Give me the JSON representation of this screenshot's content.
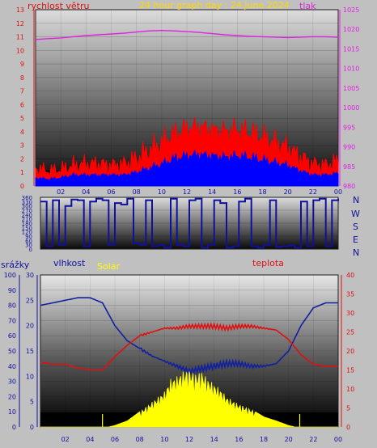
{
  "header": {
    "wind_label": "rychlost větru",
    "title": "24 hour graph day : 24 June 2024",
    "pressure_label": "tlak"
  },
  "panel2": {
    "compass": [
      "N",
      "W",
      "S",
      "E",
      "N"
    ]
  },
  "panel3": {
    "rain_label": "srážky",
    "humidity_label": "vlhkost",
    "solar_label": "Solar",
    "temp_label": "teplota"
  },
  "colors": {
    "background": "#c0c0c0",
    "wind_avg": "#0000ff",
    "wind_gust": "#ff0000",
    "pressure": "#e020e0",
    "direction": "#1010a0",
    "humidity": "#1020a0",
    "temperature": "#e01010",
    "solar": "#ffff00",
    "title": "#ffd700"
  },
  "chart_data": [
    {
      "type": "line",
      "x_ticks": [
        "02",
        "04",
        "06",
        "08",
        "10",
        "12",
        "14",
        "16",
        "18",
        "20",
        "22",
        "00"
      ],
      "y_left_ticks": [
        "0",
        "1",
        "2",
        "3",
        "4",
        "5",
        "6",
        "7",
        "8",
        "9",
        "10",
        "11",
        "12",
        "13"
      ],
      "y_right_ticks": [
        "980",
        "985",
        "990",
        "995",
        "1000",
        "1005",
        "1010",
        "1015",
        "1020",
        "1025"
      ],
      "ylim_left": [
        0,
        13
      ],
      "ylim_right": [
        980,
        1025
      ],
      "series": [
        {
          "x": [
            0,
            1,
            2,
            3,
            4,
            5,
            6,
            7,
            8,
            9,
            10,
            11,
            12,
            13,
            14,
            15,
            16,
            17,
            18,
            19,
            20,
            21,
            22,
            23,
            24
          ],
          "values": [
            0.6,
            0.5,
            0.6,
            0.8,
            0.8,
            0.8,
            0.8,
            0.8,
            1.0,
            1.3,
            1.6,
            2.0,
            2.2,
            2.3,
            2.2,
            2.1,
            2.2,
            2.1,
            1.9,
            1.7,
            1.5,
            1.1,
            0.8,
            0.8,
            0.9
          ]
        },
        {
          "x": [
            0,
            1,
            2,
            3,
            4,
            5,
            6,
            7,
            8,
            9,
            10,
            11,
            12,
            13,
            14,
            15,
            16,
            17,
            18,
            19,
            20,
            21,
            22,
            23,
            24
          ],
          "values": [
            1.3,
            1.1,
            1.2,
            1.5,
            1.6,
            1.6,
            1.5,
            1.6,
            2.0,
            2.6,
            3.2,
            3.8,
            4.2,
            4.3,
            4.1,
            4.0,
            4.1,
            3.9,
            3.6,
            3.2,
            2.8,
            2.1,
            1.6,
            1.5,
            1.8
          ]
        },
        {
          "x": [
            0,
            1,
            2,
            3,
            4,
            5,
            6,
            7,
            8,
            9,
            10,
            11,
            12,
            13,
            14,
            15,
            16,
            17,
            18,
            19,
            20,
            21,
            22,
            23,
            24
          ],
          "values": [
            1017.4,
            1017.6,
            1017.8,
            1018.1,
            1018.4,
            1018.6,
            1018.8,
            1019.0,
            1019.3,
            1019.6,
            1019.7,
            1019.6,
            1019.4,
            1019.2,
            1018.9,
            1018.6,
            1018.4,
            1018.2,
            1018.1,
            1018.0,
            1017.9,
            1018.0,
            1018.1,
            1018.1,
            1018.0
          ]
        }
      ]
    },
    {
      "type": "line",
      "y_ticks": [
        "0",
        "30",
        "60",
        "90",
        "120",
        "150",
        "180",
        "210",
        "240",
        "270",
        "300",
        "330",
        "360"
      ],
      "ylim": [
        0,
        360
      ],
      "series": [
        {
          "x": [
            0,
            0.5,
            1,
            1.5,
            2,
            2.5,
            3,
            3.5,
            4,
            4.5,
            5,
            5.5,
            6,
            6.5,
            7,
            7.5,
            8,
            8.5,
            9,
            9.5,
            10,
            10.5,
            11,
            11.5,
            12,
            12.5,
            13,
            13.5,
            14,
            14.5,
            15,
            15.5,
            16,
            16.5,
            17,
            17.5,
            18,
            18.5,
            19,
            19.5,
            20,
            20.5,
            21,
            21.5,
            22,
            22.5,
            23,
            23.5,
            24
          ],
          "values": [
            330,
            20,
            340,
            30,
            300,
            345,
            340,
            20,
            330,
            350,
            340,
            30,
            320,
            310,
            350,
            40,
            30,
            340,
            20,
            30,
            10,
            350,
            30,
            20,
            340,
            350,
            10,
            30,
            340,
            320,
            10,
            20,
            330,
            350,
            20,
            10,
            30,
            340,
            15,
            20,
            25,
            10,
            330,
            20,
            340,
            350,
            20,
            340,
            350
          ]
        }
      ]
    },
    {
      "type": "line",
      "x_ticks": [
        "02",
        "04",
        "06",
        "08",
        "10",
        "12",
        "14",
        "16",
        "18",
        "20",
        "22",
        "00"
      ],
      "y_rain_ticks": [
        "0",
        "10",
        "20",
        "30",
        "40",
        "50",
        "60",
        "70",
        "80",
        "90",
        "100"
      ],
      "y_humidity_ticks": [
        "0",
        "5",
        "10",
        "15",
        "20",
        "25",
        "30"
      ],
      "y_temp_ticks": [
        "0",
        "5",
        "10",
        "15",
        "20",
        "25",
        "30",
        "35",
        "40"
      ],
      "ylim_rain": [
        0,
        100
      ],
      "ylim_humidity": [
        0,
        30
      ],
      "ylim_temp": [
        0,
        40
      ],
      "series": [
        {
          "x": [
            0,
            1,
            2,
            3,
            4,
            5,
            6,
            7,
            8,
            9,
            10,
            11,
            12,
            13,
            14,
            15,
            16,
            17,
            18,
            19,
            20,
            21,
            22,
            23,
            24
          ],
          "values": [
            24.0,
            24.5,
            25.0,
            25.5,
            25.5,
            24.5,
            20.0,
            17.0,
            15.5,
            14.0,
            13.0,
            12.0,
            11.0,
            11.5,
            12.0,
            12.5,
            12.5,
            12.0,
            12.0,
            12.5,
            15.0,
            20.0,
            23.5,
            24.5,
            24.5
          ]
        },
        {
          "x": [
            0,
            1,
            2,
            3,
            4,
            5,
            6,
            7,
            8,
            9,
            10,
            11,
            12,
            13,
            14,
            15,
            16,
            17,
            18,
            19,
            20,
            21,
            22,
            23,
            24
          ],
          "values": [
            17.0,
            16.5,
            16.5,
            15.5,
            15.0,
            15.0,
            18.5,
            21.5,
            24.0,
            25.0,
            26.0,
            26.0,
            26.5,
            26.5,
            26.5,
            26.0,
            26.5,
            26.5,
            26.0,
            25.5,
            23.0,
            19.0,
            16.5,
            16.0,
            16.0
          ]
        },
        {
          "x": [
            0,
            1,
            2,
            3,
            4,
            5,
            5.5,
            6,
            7,
            8,
            9,
            10,
            10.5,
            11,
            11.5,
            12,
            12.5,
            13,
            13.5,
            14,
            14.5,
            15,
            16,
            17,
            18,
            19,
            20,
            20.5,
            21,
            22,
            23,
            24
          ],
          "values": [
            0,
            0,
            0,
            0,
            0,
            0,
            0,
            0.3,
            1.2,
            3.0,
            5.0,
            7.0,
            9.5,
            10.0,
            11.0,
            11.5,
            10.5,
            11.0,
            9.5,
            8.5,
            7.5,
            6.0,
            4.5,
            3.5,
            2.0,
            1.2,
            0.3,
            0,
            0,
            0,
            0,
            0
          ]
        }
      ]
    }
  ]
}
